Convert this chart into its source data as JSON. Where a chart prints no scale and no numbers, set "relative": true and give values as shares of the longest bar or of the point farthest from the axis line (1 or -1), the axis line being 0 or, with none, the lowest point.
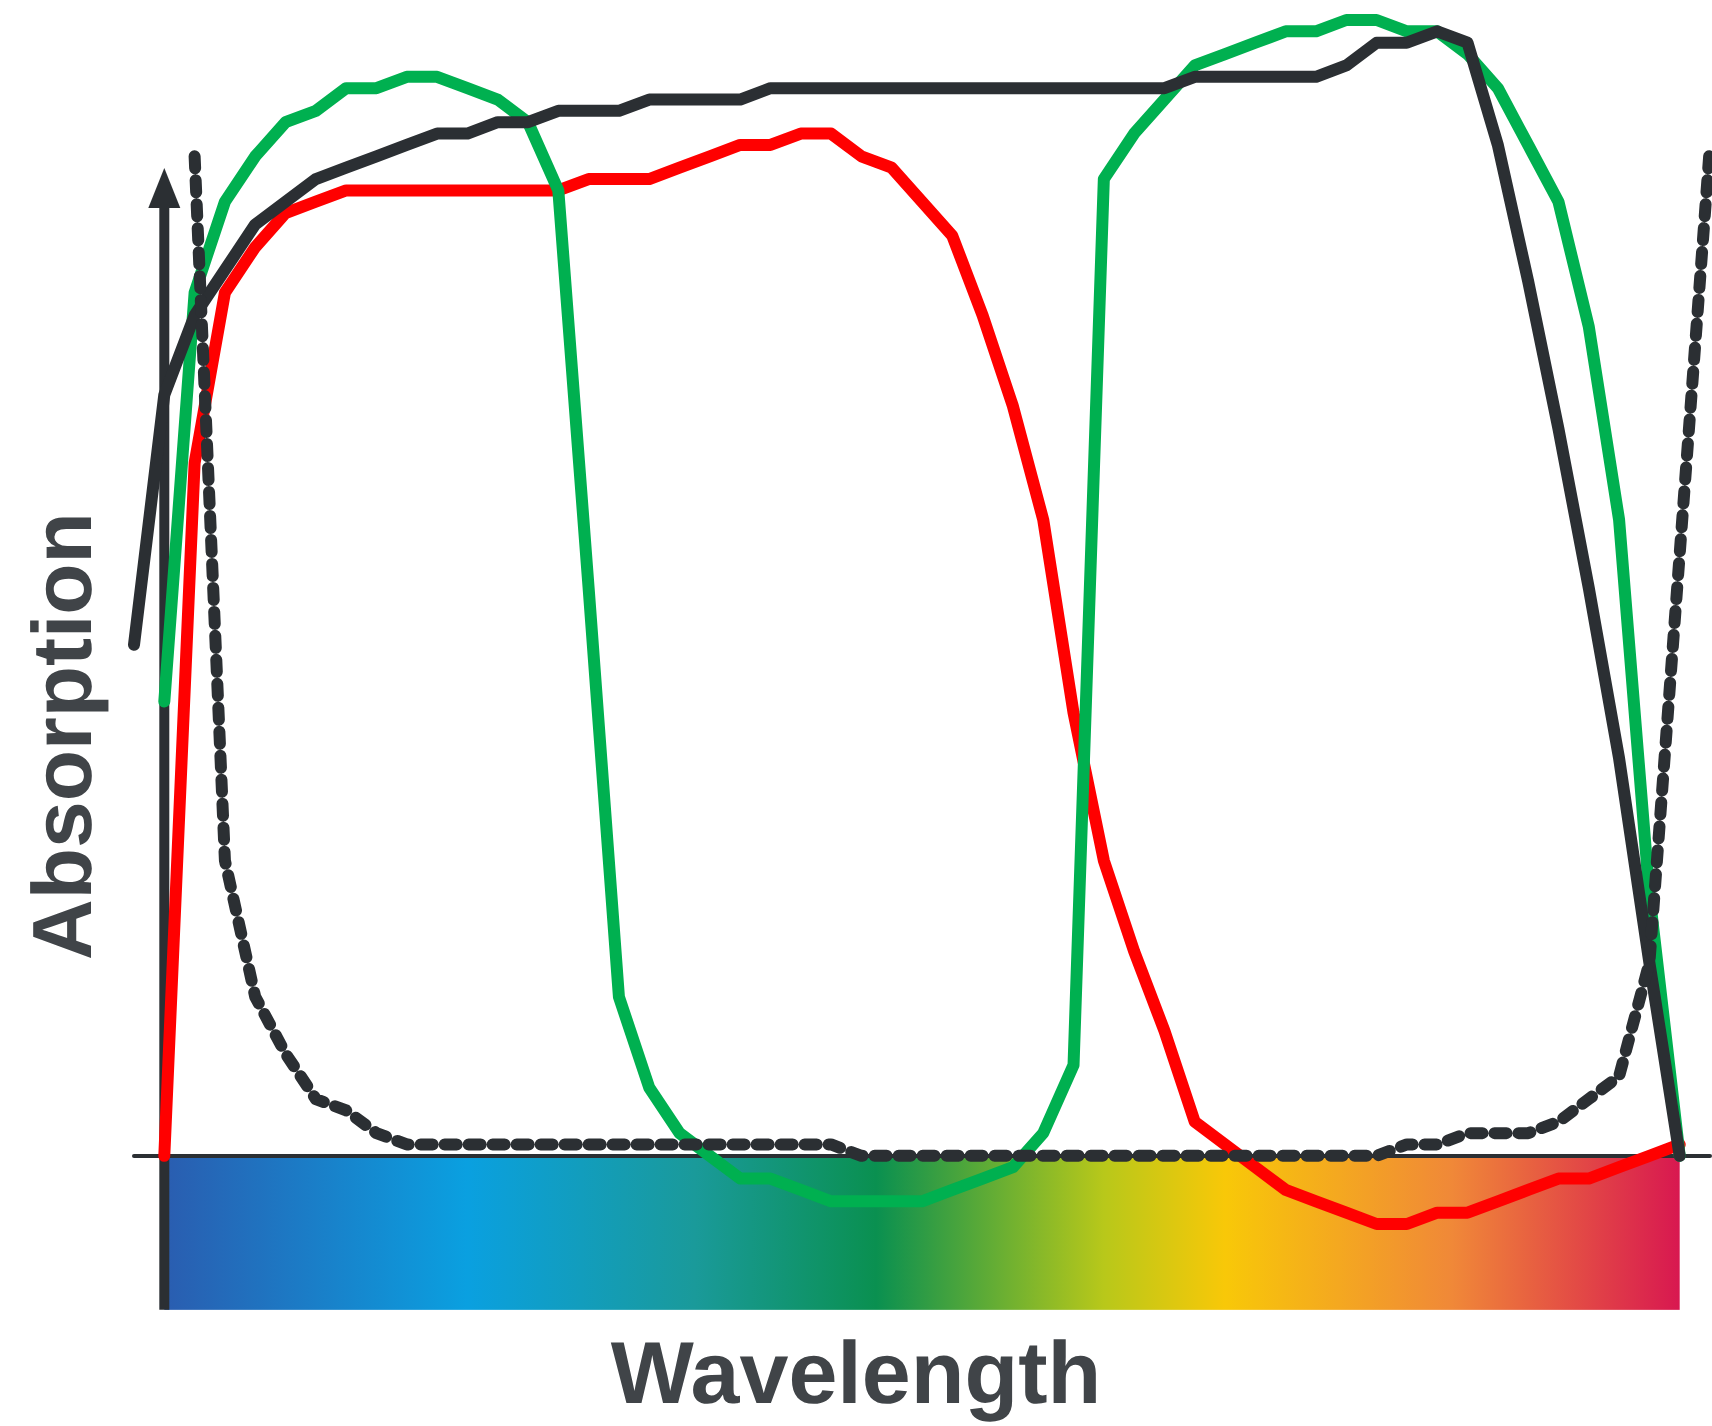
{
  "chart_data": {
    "type": "line",
    "relative": true,
    "xlabel": "Wavelength",
    "ylabel": "Absorption",
    "marker": "none",
    "categories": [
      null,
      null,
      null,
      null,
      null,
      null,
      null,
      null,
      null,
      null,
      null,
      null,
      null,
      null,
      null,
      null,
      null,
      null,
      null,
      null,
      null,
      null,
      null,
      null,
      null,
      null,
      null,
      null,
      null,
      null,
      null,
      null,
      null,
      null,
      null,
      null,
      null,
      null,
      null,
      null,
      null,
      null,
      null,
      null,
      null,
      null,
      null,
      null,
      null,
      null,
      null,
      null,
      null
    ],
    "series": [
      {
        "color": "#ff0000",
        "line_style": "solid",
        "values": [
          null,
          0,
          0.61,
          0.76,
          0.8,
          0.83,
          0.84,
          0.85,
          0.85,
          0.85,
          0.85,
          0.85,
          0.85,
          0.85,
          0.85,
          0.86,
          0.86,
          0.86,
          0.87,
          0.88,
          0.89,
          0.89,
          0.9,
          0.9,
          0.88,
          0.87,
          0.84,
          0.81,
          0.74,
          0.66,
          0.56,
          0.39,
          0.26,
          0.18,
          0.11,
          0.03,
          0.01,
          -0.01,
          -0.03,
          -0.04,
          -0.05,
          -0.06,
          -0.06,
          -0.05,
          -0.05,
          -0.04,
          -0.03,
          -0.02,
          -0.02,
          -0.01,
          0,
          0.01,
          null
        ]
      },
      {
        "color": "#00b050",
        "line_style": "solid",
        "values": [
          null,
          0.4,
          0.76,
          0.84,
          0.88,
          0.91,
          0.92,
          0.94,
          0.94,
          0.95,
          0.95,
          0.94,
          0.93,
          0.91,
          0.85,
          0.5,
          0.14,
          0.06,
          0.02,
          0,
          -0.02,
          -0.02,
          -0.03,
          -0.04,
          -0.04,
          -0.04,
          -0.04,
          -0.03,
          -0.02,
          -0.01,
          0.02,
          0.08,
          0.86,
          0.9,
          0.93,
          0.96,
          0.97,
          0.98,
          0.99,
          0.99,
          1,
          1,
          0.99,
          0.99,
          0.97,
          0.94,
          0.89,
          0.84,
          0.73,
          0.56,
          0.23,
          0,
          null
        ]
      },
      {
        "color": "#2b2f33",
        "line_style": "solid",
        "values": [
          0.45,
          0.67,
          0.74,
          0.78,
          0.82,
          0.84,
          0.86,
          0.87,
          0.88,
          0.89,
          0.9,
          0.9,
          0.91,
          0.91,
          0.92,
          0.92,
          0.92,
          0.93,
          0.93,
          0.93,
          0.93,
          0.94,
          0.94,
          0.94,
          0.94,
          0.94,
          0.94,
          0.94,
          0.94,
          0.94,
          0.94,
          0.94,
          0.94,
          0.94,
          0.94,
          0.95,
          0.95,
          0.95,
          0.95,
          0.95,
          0.96,
          0.98,
          0.98,
          0.99,
          0.98,
          0.89,
          0.77,
          0.64,
          0.5,
          0.35,
          0.17,
          0,
          null
        ]
      },
      {
        "color": "#2b2f33",
        "line_style": "dotted",
        "values": [
          null,
          null,
          0.88,
          0.26,
          0.14,
          0.09,
          0.05,
          0.04,
          0.02,
          0.01,
          0.01,
          0.01,
          0.01,
          0.01,
          0.01,
          0.01,
          0.01,
          0.01,
          0.01,
          0.01,
          0.01,
          0.01,
          0.01,
          0.01,
          0,
          0,
          0,
          0,
          0,
          0,
          0,
          0,
          0,
          0,
          0,
          0,
          0,
          0,
          0,
          0,
          0,
          0,
          0.01,
          0.01,
          0.02,
          0.02,
          0.02,
          0.03,
          0.05,
          0.07,
          0.17,
          0.53,
          0.89
        ]
      }
    ]
  }
}
